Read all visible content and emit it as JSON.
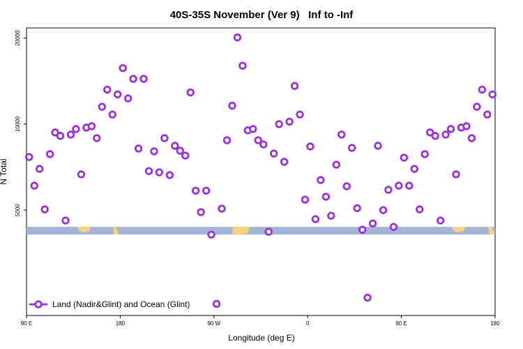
{
  "chart_data": {
    "type": "scatter",
    "title": "40S-35S November (Ver 9)   Inf to -Inf",
    "x_label": "Longitude (deg E)",
    "y_label": "N Total",
    "log_y": true,
    "legend": "bottom-left",
    "xlim": [
      90,
      540
    ],
    "xticks": [
      {
        "value": 90,
        "label": "90 E"
      },
      {
        "value": 180,
        "label": "180"
      },
      {
        "value": 270,
        "label": "90 W"
      },
      {
        "value": 360,
        "label": "0"
      },
      {
        "value": 450,
        "label": "90 E"
      },
      {
        "value": 540,
        "label": "180"
      }
    ],
    "ylim": [
      2140,
      21700
    ],
    "yticks": [
      5000,
      10000,
      20000
    ],
    "series": [
      {
        "name": "Land (Nadir&Glint) and Ocean (Glint)",
        "color": "#9b30e0",
        "x": [
          92.5,
          97.5,
          102.5,
          107.5,
          112.5,
          117.5,
          122.5,
          127.5,
          132.5,
          137.5,
          142.5,
          147.5,
          152.5,
          157.5,
          162.5,
          167.5,
          172.5,
          177.5,
          182.5,
          187.5,
          192.5,
          197.5,
          202.5,
          207.5,
          212.5,
          217.5,
          222.5,
          227.5,
          232.5,
          237.5,
          242.5,
          247.5,
          252.5,
          257.5,
          262.5,
          267.5,
          272.5,
          277.5,
          282.5,
          287.5,
          292.5,
          297.5,
          302.5,
          307.5,
          312.5,
          317.5,
          322.5,
          327.5,
          332.5,
          337.5,
          342.5,
          347.5,
          352.5,
          357.5,
          362.5,
          367.5,
          372.5,
          377.5,
          382.5,
          387.5,
          392.5,
          397.5,
          402.5,
          407.5,
          412.5,
          417.5,
          422.5,
          427.5,
          432.5,
          437.5,
          442.5,
          447.5,
          452.5,
          457.5,
          462.5,
          467.5,
          472.5,
          477.5,
          482.5,
          487.5,
          492.5,
          497.5,
          502.5,
          507.5,
          512.5,
          517.5,
          522.5,
          527.5,
          532.5,
          537.5
        ],
        "values": [
          7670,
          6090,
          6970,
          5030,
          7850,
          9350,
          9090,
          4600,
          9190,
          9610,
          6670,
          9720,
          9830,
          8930,
          11500,
          13200,
          10800,
          12700,
          15700,
          12300,
          14400,
          8210,
          14400,
          6850,
          8030,
          6780,
          8930,
          6630,
          8400,
          8070,
          7760,
          12900,
          5850,
          4920,
          5850,
          4105,
          2350,
          5060,
          8780,
          11600,
          20100,
          16000,
          9510,
          9610,
          8780,
          8490,
          4200,
          7890,
          10000,
          7380,
          10200,
          13600,
          10800,
          5440,
          8350,
          4650,
          6370,
          5570,
          4780,
          7210,
          9190,
          6060,
          8260,
          5080,
          4270,
          2470,
          4490,
          8400,
          5000,
          5890,
          4370,
          6090,
          7630,
          6090,
          6970,
          5030,
          7850,
          9350,
          9090,
          4600,
          9190,
          9610,
          6670,
          9720,
          9830,
          8930,
          11500,
          13200,
          10800,
          12700
        ]
      }
    ]
  }
}
